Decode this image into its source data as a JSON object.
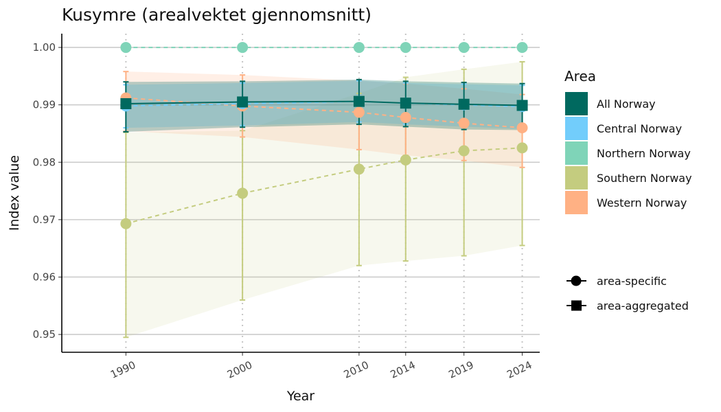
{
  "chart_data": {
    "type": "line",
    "title": "Kusymre (arealvektet gjennomsnitt)",
    "xlabel": "Year",
    "ylabel": "Index value",
    "x": [
      1990,
      2000,
      2010,
      2014,
      2019,
      2024
    ],
    "xlim": [
      1984.5,
      2025.5
    ],
    "ylim": [
      0.9469,
      1.0024
    ],
    "y_ticks": [
      0.95,
      0.96,
      0.97,
      0.98,
      0.99,
      1.0
    ],
    "y_tick_labels": [
      "0.95",
      "0.96",
      "0.97",
      "0.98",
      "0.99",
      "1.00"
    ],
    "grid": "horizontal major lines, dotted vertical lines at data years",
    "legend_position": "right",
    "area_legend": {
      "title": "Area",
      "entries": [
        {
          "label": "All Norway",
          "color": "#00695f"
        },
        {
          "label": "Central Norway",
          "color": "#72cdfb"
        },
        {
          "label": "Northern Norway",
          "color": "#7fd4b8"
        },
        {
          "label": "Southern Norway",
          "color": "#c4cc7f"
        },
        {
          "label": "Western Norway",
          "color": "#ffb184"
        }
      ]
    },
    "type_legend": {
      "entries": [
        {
          "label": "area-specific",
          "shape": "circle"
        },
        {
          "label": "area-aggregated",
          "shape": "square"
        }
      ]
    },
    "series": [
      {
        "name": "Southern Norway",
        "type": "area-specific",
        "color": "#c4cc7f",
        "dashed": true,
        "values": [
          0.9693,
          0.9746,
          0.9788,
          0.9804,
          0.982,
          0.9825
        ],
        "lower": [
          0.9495,
          0.956,
          0.962,
          0.9628,
          0.9637,
          0.9655
        ],
        "upper": [
          0.9852,
          0.9855,
          0.992,
          0.9948,
          0.9962,
          0.9975
        ]
      },
      {
        "name": "Western Norway",
        "type": "area-specific",
        "color": "#ffb184",
        "dashed": true,
        "values": [
          0.9912,
          0.9898,
          0.9887,
          0.9878,
          0.9868,
          0.986
        ],
        "lower": [
          0.9854,
          0.9844,
          0.9822,
          0.9812,
          0.9803,
          0.9791
        ],
        "upper": [
          0.9958,
          0.9952,
          0.9942,
          0.9937,
          0.9928,
          0.9918
        ]
      },
      {
        "name": "Central Norway",
        "type": "area-specific",
        "color": "#72cdfb",
        "dashed": true,
        "values": [
          0.9898,
          0.9902,
          0.9906,
          0.9903,
          0.99,
          0.9897
        ],
        "lower": [
          0.986,
          0.9864,
          0.987,
          0.9866,
          0.9862,
          0.9858
        ],
        "upper": [
          0.9935,
          0.9938,
          0.9942,
          0.9938,
          0.9936,
          0.9934
        ]
      },
      {
        "name": "Northern Norway",
        "type": "area-specific",
        "color": "#7fd4b8",
        "dashed": true,
        "values": [
          1.0,
          1.0,
          1.0,
          1.0,
          1.0,
          1.0
        ],
        "lower": [
          1.0,
          1.0,
          1.0,
          1.0,
          1.0,
          1.0
        ],
        "upper": [
          1.0,
          1.0,
          1.0,
          1.0,
          1.0,
          1.0
        ]
      },
      {
        "name": "All Norway",
        "type": "area-aggregated",
        "color": "#00695f",
        "dashed": false,
        "values": [
          0.9902,
          0.9905,
          0.9906,
          0.9903,
          0.9901,
          0.9899
        ],
        "lower": [
          0.9853,
          0.9861,
          0.9866,
          0.9862,
          0.9857,
          0.9856
        ],
        "upper": [
          0.994,
          0.9941,
          0.9944,
          0.9941,
          0.9939,
          0.9937
        ]
      }
    ]
  }
}
